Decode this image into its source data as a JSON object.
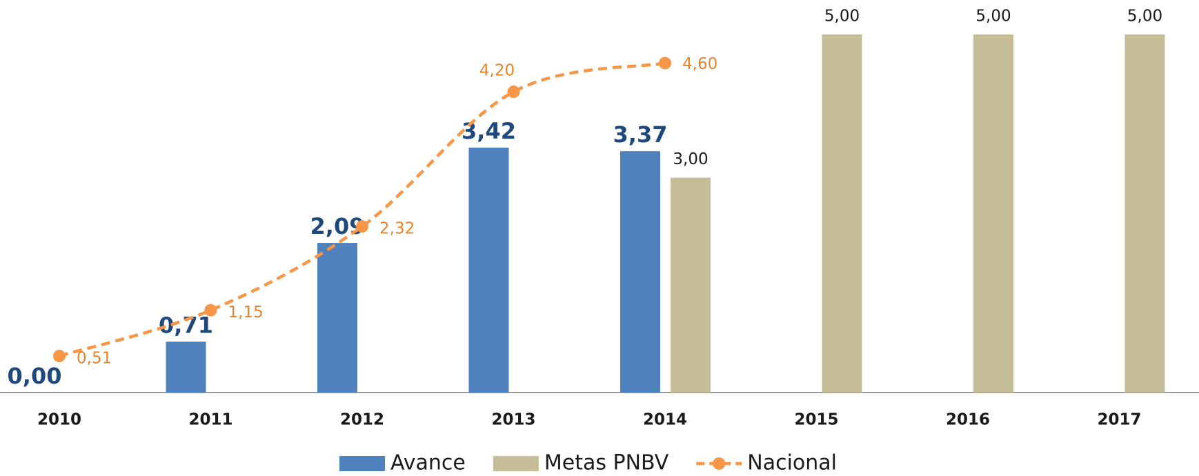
{
  "chart_data": {
    "type": "bar",
    "categories": [
      "2010",
      "2011",
      "2012",
      "2013",
      "2014",
      "2015",
      "2016",
      "2017"
    ],
    "series": [
      {
        "name": "Avance",
        "type": "bar",
        "color": "#4f81bd",
        "label_color": "#1f497d",
        "values": [
          0.0,
          0.71,
          2.09,
          3.42,
          3.37,
          null,
          null,
          null
        ],
        "value_labels": [
          "0,00",
          "0,71",
          "2,09",
          "3,42",
          "3,37",
          null,
          null,
          null
        ]
      },
      {
        "name": "Metas PNBV",
        "type": "bar",
        "color": "#c4bd97",
        "label_color": "#1a1a1a",
        "values": [
          null,
          null,
          null,
          null,
          3.0,
          5.0,
          5.0,
          5.0
        ],
        "value_labels": [
          null,
          null,
          null,
          null,
          "3,00",
          "5,00",
          "5,00",
          "5,00"
        ]
      },
      {
        "name": "Nacional",
        "type": "line",
        "color": "#f79646",
        "label_color": "#e8832a",
        "dashed": true,
        "smooth": true,
        "values": [
          0.51,
          1.15,
          2.32,
          4.2,
          4.6,
          null,
          null,
          null
        ],
        "value_labels": [
          "0,51",
          "1,15",
          "2,32",
          "4,20",
          "4,60",
          null,
          null,
          null
        ]
      }
    ],
    "legend": "bottom"
  }
}
